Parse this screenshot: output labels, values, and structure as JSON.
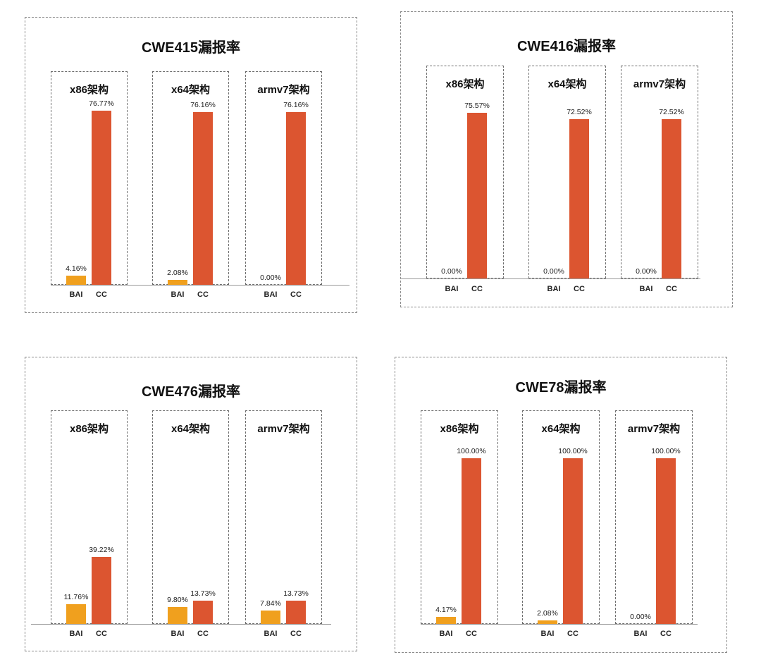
{
  "colors": {
    "BAI": "#f0a01e",
    "CC": "#dc5530"
  },
  "chart_data": [
    {
      "type": "bar",
      "title": "CWE415漏报率",
      "categories": [
        "BAI",
        "CC"
      ],
      "ylim": [
        0,
        100
      ],
      "groups": [
        {
          "title": "x86架构",
          "values": [
            4.16,
            76.77
          ],
          "labels": [
            "4.16%",
            "76.77%"
          ]
        },
        {
          "title": "x64架构",
          "values": [
            2.08,
            76.16
          ],
          "labels": [
            "2.08%",
            "76.16%"
          ]
        },
        {
          "title": "armv7架构",
          "values": [
            0.0,
            76.16
          ],
          "labels": [
            "0.00%",
            "76.16%"
          ]
        }
      ]
    },
    {
      "type": "bar",
      "title": "CWE416漏报率",
      "categories": [
        "BAI",
        "CC"
      ],
      "ylim": [
        0,
        100
      ],
      "groups": [
        {
          "title": "x86架构",
          "values": [
            0.0,
            75.57
          ],
          "labels": [
            "0.00%",
            "75.57%"
          ]
        },
        {
          "title": "x64架构",
          "values": [
            0.0,
            72.52
          ],
          "labels": [
            "0.00%",
            "72.52%"
          ]
        },
        {
          "title": "armv7架构",
          "values": [
            0.0,
            72.52
          ],
          "labels": [
            "0.00%",
            "72.52%"
          ]
        }
      ]
    },
    {
      "type": "bar",
      "title": "CWE476漏报率",
      "categories": [
        "BAI",
        "CC"
      ],
      "ylim": [
        0,
        100
      ],
      "groups": [
        {
          "title": "x86架构",
          "values": [
            11.76,
            39.22
          ],
          "labels": [
            "11.76%",
            "39.22%"
          ]
        },
        {
          "title": "x64架构",
          "values": [
            9.8,
            13.73
          ],
          "labels": [
            "9.80%",
            "13.73%"
          ]
        },
        {
          "title": "armv7架构",
          "values": [
            7.84,
            13.73
          ],
          "labels": [
            "7.84%",
            "13.73%"
          ]
        }
      ]
    },
    {
      "type": "bar",
      "title": "CWE78漏报率",
      "categories": [
        "BAI",
        "CC"
      ],
      "ylim": [
        0,
        100
      ],
      "groups": [
        {
          "title": "x86架构",
          "values": [
            4.17,
            100.0
          ],
          "labels": [
            "4.17%",
            "100.00%"
          ]
        },
        {
          "title": "x64架构",
          "values": [
            2.08,
            100.0
          ],
          "labels": [
            "2.08%",
            "100.00%"
          ]
        },
        {
          "title": "armv7架构",
          "values": [
            0.0,
            100.0
          ],
          "labels": [
            "0.00%",
            "100.00%"
          ]
        }
      ]
    }
  ]
}
